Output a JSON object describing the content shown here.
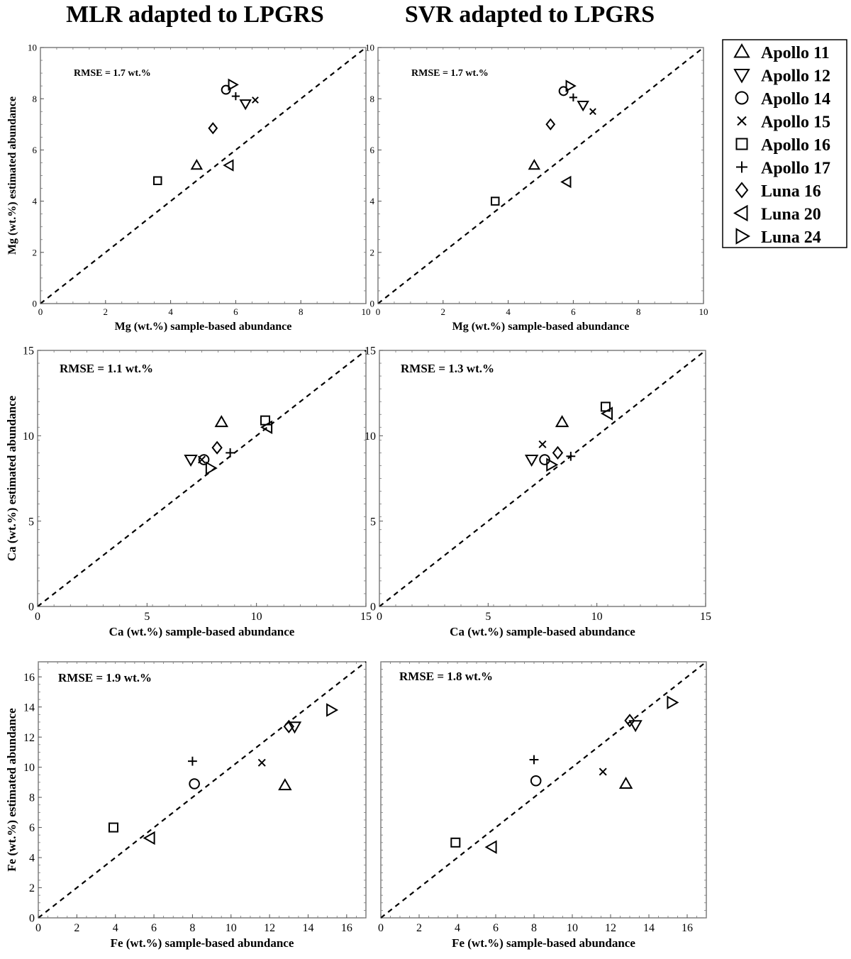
{
  "column_titles": [
    "MLR adapted to LPGRS",
    "SVR adapted to LPGRS"
  ],
  "legend": {
    "entries": [
      {
        "label": "Apollo 11",
        "marker": "triangle-up"
      },
      {
        "label": "Apollo 12",
        "marker": "triangle-down"
      },
      {
        "label": "Apollo 14",
        "marker": "circle"
      },
      {
        "label": "Apollo 15",
        "marker": "x"
      },
      {
        "label": "Apollo 16",
        "marker": "square"
      },
      {
        "label": "Apollo 17",
        "marker": "plus"
      },
      {
        "label": "Luna 16",
        "marker": "diamond"
      },
      {
        "label": "Luna 20",
        "marker": "triangle-left"
      },
      {
        "label": "Luna 24",
        "marker": "triangle-right"
      }
    ]
  },
  "chart_data": [
    {
      "type": "scatter",
      "id": "mg-mlr",
      "xlabel": "Mg (wt.%) sample-based abundance",
      "ylabel": "Mg (wt.%) estimated abundance",
      "annotation": "RMSE = 1.7 wt.%",
      "xlim": [
        0,
        10
      ],
      "ylim": [
        0,
        10
      ],
      "xticks": [
        0,
        2,
        4,
        6,
        8,
        10
      ],
      "yticks": [
        0,
        2,
        4,
        6,
        8,
        10
      ],
      "series": [
        {
          "name": "Apollo 11",
          "marker": "triangle-up",
          "x": [
            4.8
          ],
          "y": [
            5.4
          ]
        },
        {
          "name": "Apollo 12",
          "marker": "triangle-down",
          "x": [
            6.3
          ],
          "y": [
            7.8
          ]
        },
        {
          "name": "Apollo 14",
          "marker": "circle",
          "x": [
            5.7
          ],
          "y": [
            8.35
          ]
        },
        {
          "name": "Apollo 15",
          "marker": "x",
          "x": [
            6.6
          ],
          "y": [
            7.95
          ]
        },
        {
          "name": "Apollo 16",
          "marker": "square",
          "x": [
            3.6
          ],
          "y": [
            4.8
          ]
        },
        {
          "name": "Apollo 17",
          "marker": "plus",
          "x": [
            6.0
          ],
          "y": [
            8.1
          ]
        },
        {
          "name": "Luna 16",
          "marker": "diamond",
          "x": [
            5.3
          ],
          "y": [
            6.85
          ]
        },
        {
          "name": "Luna 20",
          "marker": "triangle-left",
          "x": [
            5.8
          ],
          "y": [
            5.4
          ]
        },
        {
          "name": "Luna 24",
          "marker": "triangle-right",
          "x": [
            5.9
          ],
          "y": [
            8.55
          ]
        }
      ]
    },
    {
      "type": "scatter",
      "id": "mg-svr",
      "xlabel": "Mg (wt.%) sample-based abundance",
      "ylabel": "",
      "annotation": "RMSE = 1.7 wt.%",
      "xlim": [
        0,
        10
      ],
      "ylim": [
        0,
        10
      ],
      "xticks": [
        0,
        2,
        4,
        6,
        8,
        10
      ],
      "yticks": [
        0,
        2,
        4,
        6,
        8,
        10
      ],
      "series": [
        {
          "name": "Apollo 11",
          "marker": "triangle-up",
          "x": [
            4.8
          ],
          "y": [
            5.4
          ]
        },
        {
          "name": "Apollo 12",
          "marker": "triangle-down",
          "x": [
            6.3
          ],
          "y": [
            7.75
          ]
        },
        {
          "name": "Apollo 14",
          "marker": "circle",
          "x": [
            5.7
          ],
          "y": [
            8.3
          ]
        },
        {
          "name": "Apollo 15",
          "marker": "x",
          "x": [
            6.6
          ],
          "y": [
            7.5
          ]
        },
        {
          "name": "Apollo 16",
          "marker": "square",
          "x": [
            3.6
          ],
          "y": [
            4.0
          ]
        },
        {
          "name": "Apollo 17",
          "marker": "plus",
          "x": [
            6.0
          ],
          "y": [
            8.05
          ]
        },
        {
          "name": "Luna 16",
          "marker": "diamond",
          "x": [
            5.3
          ],
          "y": [
            7.0
          ]
        },
        {
          "name": "Luna 20",
          "marker": "triangle-left",
          "x": [
            5.8
          ],
          "y": [
            4.75
          ]
        },
        {
          "name": "Luna 24",
          "marker": "triangle-right",
          "x": [
            5.9
          ],
          "y": [
            8.5
          ]
        }
      ]
    },
    {
      "type": "scatter",
      "id": "ca-mlr",
      "xlabel": "Ca (wt.%) sample-based abundance",
      "ylabel": "Ca (wt.%) estimated abundance",
      "annotation": "RMSE = 1.1 wt.%",
      "xlim": [
        0,
        15
      ],
      "ylim": [
        0,
        15
      ],
      "xticks": [
        0,
        5,
        10,
        15
      ],
      "yticks": [
        0,
        5,
        10,
        15
      ],
      "series": [
        {
          "name": "Apollo 11",
          "marker": "triangle-up",
          "x": [
            8.4
          ],
          "y": [
            10.8
          ]
        },
        {
          "name": "Apollo 12",
          "marker": "triangle-down",
          "x": [
            7.0
          ],
          "y": [
            8.6
          ]
        },
        {
          "name": "Apollo 14",
          "marker": "circle",
          "x": [
            7.6
          ],
          "y": [
            8.6
          ]
        },
        {
          "name": "Apollo 15",
          "marker": "x",
          "x": [
            7.5
          ],
          "y": [
            8.6
          ]
        },
        {
          "name": "Apollo 16",
          "marker": "square",
          "x": [
            10.4
          ],
          "y": [
            10.9
          ]
        },
        {
          "name": "Apollo 17",
          "marker": "plus",
          "x": [
            8.8
          ],
          "y": [
            9.0
          ]
        },
        {
          "name": "Luna 16",
          "marker": "diamond",
          "x": [
            8.2
          ],
          "y": [
            9.3
          ]
        },
        {
          "name": "Luna 20",
          "marker": "triangle-left",
          "x": [
            10.5
          ],
          "y": [
            10.5
          ]
        },
        {
          "name": "Luna 24",
          "marker": "triangle-right",
          "x": [
            7.9
          ],
          "y": [
            8.1
          ]
        }
      ]
    },
    {
      "type": "scatter",
      "id": "ca-svr",
      "xlabel": "Ca (wt.%) sample-based abundance",
      "ylabel": "",
      "annotation": "RMSE = 1.3 wt.%",
      "xlim": [
        0,
        15
      ],
      "ylim": [
        0,
        15
      ],
      "xticks": [
        0,
        5,
        10,
        15
      ],
      "yticks": [
        0,
        5,
        10,
        15
      ],
      "series": [
        {
          "name": "Apollo 11",
          "marker": "triangle-up",
          "x": [
            8.4
          ],
          "y": [
            10.8
          ]
        },
        {
          "name": "Apollo 12",
          "marker": "triangle-down",
          "x": [
            7.0
          ],
          "y": [
            8.6
          ]
        },
        {
          "name": "Apollo 14",
          "marker": "circle",
          "x": [
            7.6
          ],
          "y": [
            8.6
          ]
        },
        {
          "name": "Apollo 15",
          "marker": "x",
          "x": [
            7.5
          ],
          "y": [
            9.5
          ]
        },
        {
          "name": "Apollo 16",
          "marker": "square",
          "x": [
            10.4
          ],
          "y": [
            11.7
          ]
        },
        {
          "name": "Apollo 17",
          "marker": "plus",
          "x": [
            8.8
          ],
          "y": [
            8.8
          ]
        },
        {
          "name": "Luna 16",
          "marker": "diamond",
          "x": [
            8.2
          ],
          "y": [
            9.0
          ]
        },
        {
          "name": "Luna 20",
          "marker": "triangle-left",
          "x": [
            10.5
          ],
          "y": [
            11.3
          ]
        },
        {
          "name": "Luna 24",
          "marker": "triangle-right",
          "x": [
            7.9
          ],
          "y": [
            8.3
          ]
        }
      ]
    },
    {
      "type": "scatter",
      "id": "fe-mlr",
      "xlabel": "Fe (wt.%) sample-based abundance",
      "ylabel": "Fe (wt.%) estimated abundance",
      "annotation": "RMSE = 1.9 wt.%",
      "xlim": [
        0,
        17
      ],
      "ylim": [
        0,
        17
      ],
      "xticks": [
        0,
        2,
        4,
        6,
        8,
        10,
        12,
        14,
        16
      ],
      "yticks": [
        0,
        2,
        4,
        6,
        8,
        10,
        12,
        14,
        16
      ],
      "series": [
        {
          "name": "Apollo 11",
          "marker": "triangle-up",
          "x": [
            12.8
          ],
          "y": [
            8.8
          ]
        },
        {
          "name": "Apollo 12",
          "marker": "triangle-down",
          "x": [
            13.3
          ],
          "y": [
            12.7
          ]
        },
        {
          "name": "Apollo 14",
          "marker": "circle",
          "x": [
            8.1
          ],
          "y": [
            8.9
          ]
        },
        {
          "name": "Apollo 15",
          "marker": "x",
          "x": [
            11.6
          ],
          "y": [
            10.3
          ]
        },
        {
          "name": "Apollo 16",
          "marker": "square",
          "x": [
            3.9
          ],
          "y": [
            6.0
          ]
        },
        {
          "name": "Apollo 17",
          "marker": "plus",
          "x": [
            8.0
          ],
          "y": [
            10.4
          ]
        },
        {
          "name": "Luna 16",
          "marker": "diamond",
          "x": [
            13.0
          ],
          "y": [
            12.7
          ]
        },
        {
          "name": "Luna 20",
          "marker": "triangle-left",
          "x": [
            5.8
          ],
          "y": [
            5.3
          ]
        },
        {
          "name": "Luna 24",
          "marker": "triangle-right",
          "x": [
            15.2
          ],
          "y": [
            13.8
          ]
        }
      ]
    },
    {
      "type": "scatter",
      "id": "fe-svr",
      "xlabel": "Fe (wt.%) sample-based abundance",
      "ylabel": "",
      "annotation": "RMSE = 1.8 wt.%",
      "xlim": [
        0,
        17
      ],
      "ylim": [
        0,
        17
      ],
      "xticks": [
        0,
        2,
        4,
        6,
        8,
        10,
        12,
        14,
        16
      ],
      "yticks": [],
      "series": [
        {
          "name": "Apollo 11",
          "marker": "triangle-up",
          "x": [
            12.8
          ],
          "y": [
            8.9
          ]
        },
        {
          "name": "Apollo 12",
          "marker": "triangle-down",
          "x": [
            13.3
          ],
          "y": [
            12.8
          ]
        },
        {
          "name": "Apollo 14",
          "marker": "circle",
          "x": [
            8.1
          ],
          "y": [
            9.1
          ]
        },
        {
          "name": "Apollo 15",
          "marker": "x",
          "x": [
            11.6
          ],
          "y": [
            9.7
          ]
        },
        {
          "name": "Apollo 16",
          "marker": "square",
          "x": [
            3.9
          ],
          "y": [
            5.0
          ]
        },
        {
          "name": "Apollo 17",
          "marker": "plus",
          "x": [
            8.0
          ],
          "y": [
            10.5
          ]
        },
        {
          "name": "Luna 16",
          "marker": "diamond",
          "x": [
            13.0
          ],
          "y": [
            13.1
          ]
        },
        {
          "name": "Luna 20",
          "marker": "triangle-left",
          "x": [
            5.8
          ],
          "y": [
            4.7
          ]
        },
        {
          "name": "Luna 24",
          "marker": "triangle-right",
          "x": [
            15.2
          ],
          "y": [
            14.3
          ]
        }
      ]
    }
  ]
}
